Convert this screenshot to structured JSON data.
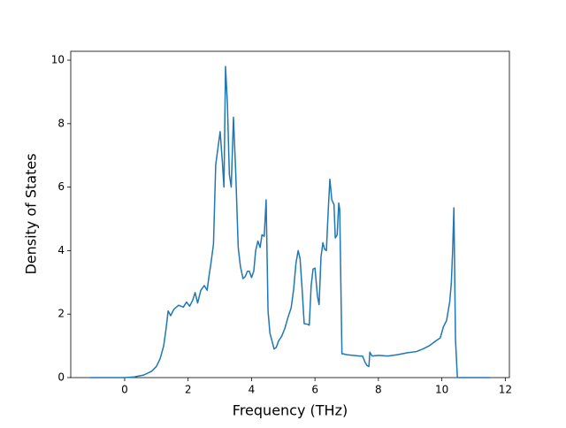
{
  "chart_data": {
    "type": "line",
    "xlabel": "Frequency (THz)",
    "ylabel": "Density of States",
    "xlim": [
      -1.7,
      12.13
    ],
    "ylim": [
      0,
      10.28
    ],
    "xticks": [
      0,
      2,
      4,
      6,
      8,
      10,
      12
    ],
    "yticks": [
      0,
      2,
      4,
      6,
      8,
      10
    ],
    "series": [
      {
        "color": "#1f77b4",
        "x": [
          -1.09,
          0,
          0.3,
          0.6,
          0.85,
          1.0,
          1.12,
          1.23,
          1.3,
          1.37,
          1.45,
          1.55,
          1.7,
          1.85,
          1.95,
          2.05,
          2.15,
          2.22,
          2.3,
          2.4,
          2.51,
          2.6,
          2.66,
          2.72,
          2.8,
          2.87,
          2.95,
          3.01,
          3.08,
          3.13,
          3.18,
          3.24,
          3.3,
          3.36,
          3.43,
          3.5,
          3.58,
          3.65,
          3.73,
          3.8,
          3.87,
          3.93,
          4.0,
          4.07,
          4.13,
          4.2,
          4.27,
          4.33,
          4.4,
          4.46,
          4.52,
          4.58,
          4.66,
          4.71,
          4.78,
          4.85,
          4.95,
          5.05,
          5.15,
          5.25,
          5.33,
          5.4,
          5.47,
          5.53,
          5.6,
          5.66,
          5.77,
          5.82,
          5.88,
          5.94,
          6.0,
          6.08,
          6.13,
          6.19,
          6.25,
          6.3,
          6.36,
          6.42,
          6.47,
          6.53,
          6.6,
          6.64,
          6.7,
          6.75,
          6.78,
          6.85,
          6.89,
          7.0,
          7.2,
          7.4,
          7.5,
          7.58,
          7.64,
          7.7,
          7.73,
          7.8,
          8.0,
          8.3,
          8.6,
          8.9,
          9.2,
          9.4,
          9.6,
          9.8,
          9.95,
          10.05,
          10.15,
          10.25,
          10.3,
          10.34,
          10.38,
          10.43,
          10.49,
          10.8,
          11.52
        ],
        "values": [
          0,
          0,
          0.02,
          0.08,
          0.2,
          0.35,
          0.6,
          1.0,
          1.5,
          2.1,
          1.95,
          2.15,
          2.28,
          2.22,
          2.38,
          2.25,
          2.45,
          2.68,
          2.35,
          2.75,
          2.9,
          2.75,
          3.2,
          3.6,
          4.2,
          6.7,
          7.3,
          7.75,
          6.8,
          6.0,
          9.8,
          8.6,
          6.4,
          6.0,
          8.2,
          6.5,
          4.1,
          3.5,
          3.12,
          3.18,
          3.35,
          3.35,
          3.15,
          3.35,
          4.0,
          4.3,
          4.1,
          4.5,
          4.45,
          5.6,
          2.1,
          1.4,
          1.1,
          0.9,
          0.95,
          1.15,
          1.3,
          1.55,
          1.9,
          2.2,
          2.8,
          3.6,
          4.0,
          3.75,
          2.7,
          1.7,
          1.68,
          1.65,
          2.9,
          3.42,
          3.45,
          2.55,
          2.3,
          3.8,
          4.25,
          4.05,
          4.0,
          5.3,
          6.25,
          5.6,
          5.45,
          4.4,
          4.5,
          5.5,
          5.3,
          0.75,
          0.75,
          0.72,
          0.7,
          0.68,
          0.68,
          0.48,
          0.38,
          0.35,
          0.8,
          0.68,
          0.7,
          0.68,
          0.72,
          0.78,
          0.82,
          0.9,
          1.0,
          1.15,
          1.25,
          1.6,
          1.8,
          2.4,
          3.0,
          4.0,
          5.35,
          1.2,
          0,
          0,
          0
        ]
      }
    ]
  }
}
